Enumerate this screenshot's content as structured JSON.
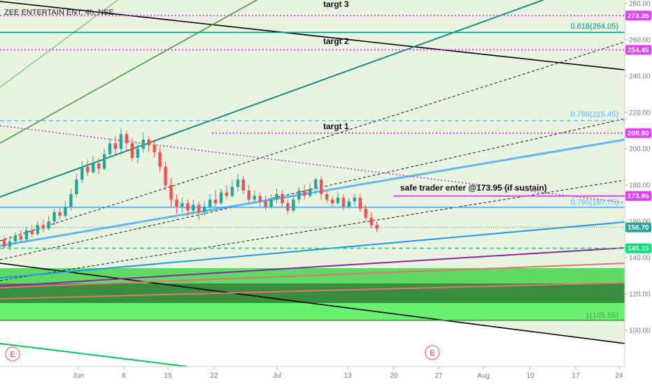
{
  "header": {
    "title": "ZEE ENTERTAIN ENT, 4h, NSE"
  },
  "chart_data": {
    "type": "candlestick",
    "ylim": [
      90,
      284
    ],
    "y_ticks": [
      100,
      120,
      140,
      160,
      180,
      200,
      220,
      240,
      260,
      280
    ],
    "x_ticks": [
      "Jun",
      "8",
      "15",
      "22",
      "Jul",
      "13",
      "20",
      "27",
      "Aug",
      "10",
      "17",
      "24"
    ],
    "candles": [
      [
        150,
        146,
        152,
        145
      ],
      [
        146,
        149,
        151,
        144
      ],
      [
        149,
        152,
        154,
        147
      ],
      [
        152,
        150,
        155,
        148
      ],
      [
        150,
        155,
        157,
        149
      ],
      [
        155,
        153,
        158,
        151
      ],
      [
        153,
        158,
        160,
        152
      ],
      [
        158,
        156,
        161,
        154
      ],
      [
        156,
        160,
        163,
        155
      ],
      [
        160,
        165,
        167,
        158
      ],
      [
        165,
        163,
        168,
        161
      ],
      [
        163,
        168,
        171,
        162
      ],
      [
        168,
        175,
        178,
        166
      ],
      [
        175,
        183,
        186,
        173
      ],
      [
        183,
        190,
        193,
        181
      ],
      [
        190,
        187,
        194,
        185
      ],
      [
        187,
        192,
        196,
        186
      ],
      [
        192,
        189,
        195,
        186
      ],
      [
        189,
        197,
        200,
        188
      ],
      [
        197,
        203,
        206,
        195
      ],
      [
        203,
        200,
        207,
        196
      ],
      [
        200,
        208,
        211,
        198
      ],
      [
        208,
        203,
        210,
        199
      ],
      [
        203,
        195,
        206,
        193
      ],
      [
        195,
        200,
        203,
        192
      ],
      [
        200,
        205,
        209,
        198
      ],
      [
        205,
        202,
        207,
        198
      ],
      [
        202,
        198,
        205,
        195
      ],
      [
        198,
        190,
        201,
        187
      ],
      [
        190,
        180,
        193,
        177
      ],
      [
        180,
        172,
        184,
        168
      ],
      [
        172,
        168,
        175,
        164
      ],
      [
        168,
        170,
        173,
        165
      ],
      [
        170,
        166,
        172,
        163
      ],
      [
        166,
        169,
        172,
        164
      ],
      [
        169,
        165,
        171,
        161
      ],
      [
        165,
        168,
        171,
        163
      ],
      [
        168,
        172,
        175,
        166
      ],
      [
        172,
        170,
        177,
        168
      ],
      [
        170,
        176,
        178,
        169
      ],
      [
        176,
        174,
        180,
        172
      ],
      [
        174,
        179,
        183,
        173
      ],
      [
        179,
        183,
        186,
        176
      ],
      [
        183,
        177,
        185,
        175
      ],
      [
        177,
        172,
        180,
        170
      ],
      [
        172,
        174,
        177,
        170
      ],
      [
        174,
        171,
        176,
        168
      ],
      [
        171,
        168,
        174,
        166
      ],
      [
        168,
        172,
        175,
        167
      ],
      [
        172,
        175,
        178,
        170
      ],
      [
        175,
        170,
        177,
        168
      ],
      [
        170,
        166,
        172,
        164
      ],
      [
        166,
        172,
        174,
        165
      ],
      [
        172,
        177,
        179,
        170
      ],
      [
        177,
        174,
        180,
        172
      ],
      [
        174,
        178,
        181,
        173
      ],
      [
        178,
        183,
        184,
        175
      ],
      [
        183,
        175,
        185,
        172
      ],
      [
        175,
        172,
        177,
        170
      ],
      [
        172,
        170,
        174,
        168
      ],
      [
        170,
        173,
        176,
        169
      ],
      [
        173,
        168,
        175,
        166
      ],
      [
        168,
        171,
        173,
        167
      ],
      [
        171,
        173,
        175,
        169
      ],
      [
        173,
        167,
        175,
        165
      ],
      [
        167,
        162,
        169,
        160
      ],
      [
        162,
        158,
        165,
        156
      ],
      [
        158,
        156,
        160,
        154
      ]
    ],
    "levels": [
      {
        "name": "targt 3",
        "value": 273.35,
        "color": "#e040fb",
        "badge": "273.35"
      },
      {
        "name": "fib-0.618",
        "value": 264.05,
        "color": "#009688",
        "label": "0.618(264.05)"
      },
      {
        "name": "targt 2",
        "value": 254.45,
        "color": "#e040fb",
        "badge": "254.45"
      },
      {
        "name": "fib-0.786-upper",
        "value": 215.45,
        "color": "#64b5f6",
        "label": "0.786(215.45)"
      },
      {
        "name": "targt 1",
        "value": 208.6,
        "color": "#e040fb",
        "badge": "208.60"
      },
      {
        "name": "safe-entry",
        "value": 173.95,
        "color": "#e040fb",
        "badge": "173.95"
      },
      {
        "name": "fib-0.786-lower",
        "value": 167.75,
        "color": "#2196f3",
        "label": "0.786(167.75)"
      },
      {
        "name": "last-price",
        "value": 156.7,
        "color": "#26a69a",
        "badge": "156.70"
      },
      {
        "name": "support",
        "value": 145.15,
        "color": "#00e676",
        "badge": "145.15"
      },
      {
        "name": "fib-1",
        "value": 105.55,
        "color": "#43a047",
        "label": "1(105.55)"
      }
    ],
    "annotations": {
      "target3": "targt 3",
      "target2": "targt 2",
      "target1": "targt 1",
      "safe_entry": "safe trader enter @173.95  (if sustain)"
    },
    "events": [
      "E",
      "E"
    ]
  },
  "colors": {
    "bull": "#26a69a",
    "bear": "#ef5350",
    "channel_fill": "#e8f3e0",
    "fib_fill_light": "#69f26f",
    "fib_fill_dark": "#388e3c",
    "badge_magenta": "#e040fb",
    "badge_green": "#00e676",
    "badge_teal": "#26a69a"
  }
}
